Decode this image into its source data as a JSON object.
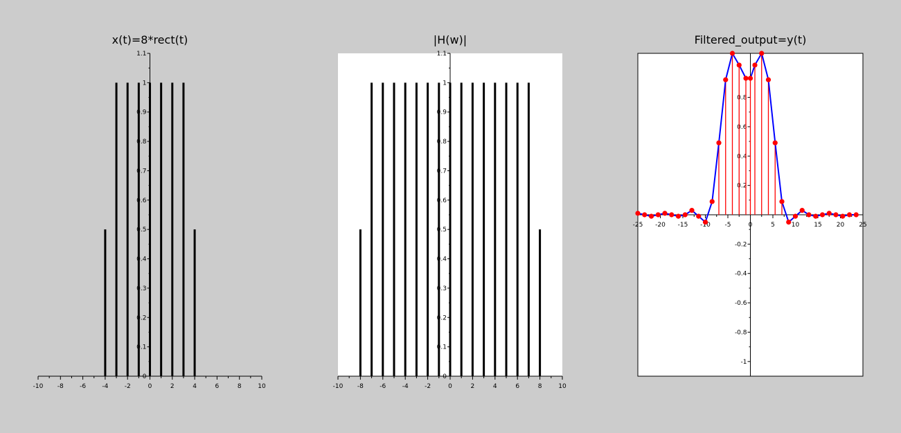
{
  "chart_data": [
    {
      "type": "bar",
      "title": "x(t)=8*rect(t)",
      "xlabel": "",
      "ylabel": "",
      "xlim": [
        -10,
        10
      ],
      "ylim": [
        0,
        1.1
      ],
      "background": "#cccccc",
      "stem_color": "#000000",
      "x": [
        -4,
        -3,
        -2,
        -1,
        0,
        1,
        2,
        3,
        4
      ],
      "values": [
        0.5,
        1,
        1,
        1,
        1,
        1,
        1,
        1,
        0.5
      ],
      "x_ticks": [
        -10,
        -8,
        -6,
        -4,
        -2,
        0,
        2,
        4,
        6,
        8,
        10
      ],
      "y_ticks": [
        0,
        0.1,
        0.2,
        0.3,
        0.4,
        0.5,
        0.6,
        0.7,
        0.8,
        0.9,
        1,
        1.1
      ]
    },
    {
      "type": "bar",
      "title": "|H(w)|",
      "xlabel": "",
      "ylabel": "",
      "xlim": [
        -10,
        10
      ],
      "ylim": [
        0,
        1.1
      ],
      "background": "#ffffff",
      "stem_color": "#000000",
      "x": [
        -8,
        -7,
        -6,
        -5,
        -4,
        -3,
        -2,
        -1,
        0,
        1,
        2,
        3,
        4,
        5,
        6,
        7,
        8
      ],
      "values": [
        0.5,
        1,
        1,
        1,
        1,
        1,
        1,
        1,
        1,
        1,
        1,
        1,
        1,
        1,
        1,
        1,
        0.5
      ],
      "x_ticks": [
        -10,
        -8,
        -6,
        -4,
        -2,
        0,
        2,
        4,
        6,
        8,
        10
      ],
      "y_ticks": [
        0,
        0.1,
        0.2,
        0.3,
        0.4,
        0.5,
        0.6,
        0.7,
        0.8,
        0.9,
        1,
        1.1
      ]
    },
    {
      "type": "line",
      "title": "Filtered_output=y(t)",
      "xlabel": "",
      "ylabel": "",
      "xlim": [
        -25,
        25
      ],
      "ylim": [
        -1.1,
        1.1
      ],
      "background": "#ffffff",
      "line_color": "#0000ff",
      "stem_color": "#ff0000",
      "marker_color": "#ff0000",
      "x": [
        -25,
        -23.5,
        -22,
        -20.5,
        -19,
        -17.5,
        -16,
        -14.5,
        -13,
        -11.5,
        -10,
        -8.5,
        -7,
        -5.5,
        -4,
        -2.5,
        -1,
        0,
        1,
        2.5,
        4,
        5.5,
        7,
        8.5,
        10,
        11.5,
        13,
        14.5,
        16,
        17.5,
        19,
        20.5,
        22,
        23.5
      ],
      "values": [
        0.01,
        0.0,
        -0.01,
        0.0,
        0.01,
        0.0,
        -0.01,
        0.0,
        0.03,
        -0.01,
        -0.05,
        0.09,
        0.49,
        0.92,
        1.1,
        1.02,
        0.93,
        0.93,
        1.02,
        1.1,
        0.92,
        0.49,
        0.09,
        -0.05,
        -0.01,
        0.03,
        0.0,
        -0.01,
        0.0,
        0.01,
        0.0,
        -0.01,
        0.0,
        0.0
      ],
      "stems_x": [
        -7,
        -5.5,
        -4,
        -2.5,
        -1,
        0,
        1,
        2.5,
        4,
        5.5,
        7
      ],
      "x_ticks": [
        -25,
        -20,
        -15,
        -10,
        -5,
        0,
        5,
        10,
        15,
        20,
        25
      ],
      "y_ticks": [
        -1,
        -0.8,
        -0.6,
        -0.4,
        -0.2,
        0,
        0.2,
        0.4,
        0.6,
        0.8
      ]
    }
  ]
}
